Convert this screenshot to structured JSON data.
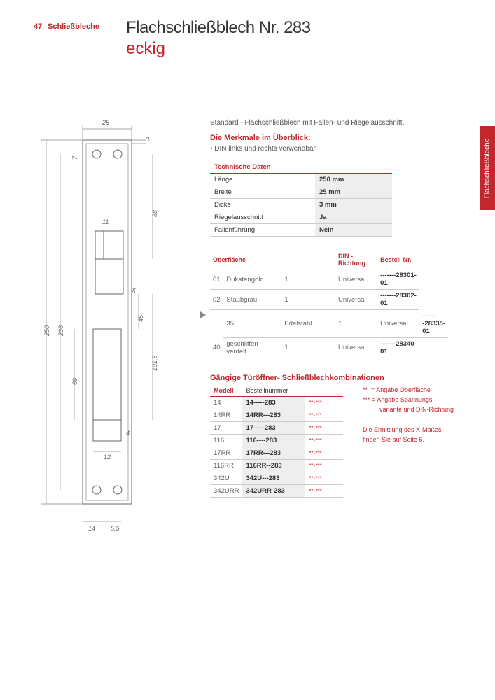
{
  "header": {
    "page_num": "47",
    "section": "Schließbleche",
    "title_main": "Flachschließblech Nr. 283",
    "title_sub": "eckig",
    "side_tab": "Flachschließbleche"
  },
  "intro": "Standard - Flachschließblech mit Fallen- und Riegelausschnitt.",
  "features": {
    "heading": "Die Merkmale im Überblick:",
    "bullet": "DIN links und rechts verwendbar"
  },
  "tech": {
    "heading": "Technische Daten",
    "rows": [
      {
        "label": "Länge",
        "value": "250 mm"
      },
      {
        "label": "Breite",
        "value": "25 mm"
      },
      {
        "label": "Dicke",
        "value": "3 mm"
      },
      {
        "label": "Riegelausschnitt",
        "value": "Ja"
      },
      {
        "label": "Fallenführung",
        "value": "Nein"
      }
    ]
  },
  "surfaces": {
    "cols": [
      "Oberfläche",
      "",
      "DIN - Richtung",
      "Bestell-Nr."
    ],
    "rows": [
      {
        "code": "01",
        "name": "Dukatengold",
        "qty": "1",
        "dir": "Universal",
        "order": "-------28301-01"
      },
      {
        "code": "02",
        "name": "Staubgrau",
        "qty": "1",
        "dir": "Universal",
        "order": "-------28302-01"
      },
      {
        "code": "35",
        "name": "Edelstahl",
        "qty": "1",
        "dir": "Universal",
        "order": "-------28335-01",
        "highlight": true
      },
      {
        "code": "40",
        "name": "geschliffen verdelt",
        "qty": "1",
        "dir": "Universal",
        "order": "-------28340-01"
      }
    ]
  },
  "combos": {
    "heading": "Gängige Türöffner- Schließblechkombinationen",
    "cols": [
      "Modell",
      "Bestellnummer",
      ""
    ],
    "rows": [
      {
        "model": "14",
        "order": "14-----283",
        "suffix": "**-***"
      },
      {
        "model": "14RR",
        "order": "14RR---283",
        "suffix": "**-***"
      },
      {
        "model": "17",
        "order": "17-----283",
        "suffix": "**-***"
      },
      {
        "model": "116",
        "order": "116----283",
        "suffix": "**-***"
      },
      {
        "model": "17RR",
        "order": "17RR---283",
        "suffix": "**-***"
      },
      {
        "model": "116RR",
        "order": "116RR--283",
        "suffix": "**-***"
      },
      {
        "model": "342U",
        "order": "342U---283",
        "suffix": "**-***"
      },
      {
        "model": "342URR",
        "order": "342URR-283",
        "suffix": "**-***"
      }
    ]
  },
  "legend": {
    "l1a": "**",
    "l1b": "= Angabe Oberfläche",
    "l2a": "***",
    "l2b": "= Angabe Spannungs-",
    "l2c": "variante und DIN-Richtung",
    "note1": "Die Ermittlung des X-Maßes",
    "note2": "finden Sie auf Seite 6."
  },
  "drawing": {
    "dims": {
      "w_top": "25",
      "edge": "3",
      "h_total": "250",
      "h_236": "236",
      "h_7": "7",
      "d_11": "11",
      "d_88": "88",
      "d_x": "X",
      "d_45": "45",
      "d_1015": "101,5",
      "d_69": "69",
      "d_4": "4",
      "d_12": "12",
      "d_14": "14",
      "d_55": "5,5"
    },
    "colors": {
      "line": "#666666",
      "leader": "#888888"
    }
  }
}
